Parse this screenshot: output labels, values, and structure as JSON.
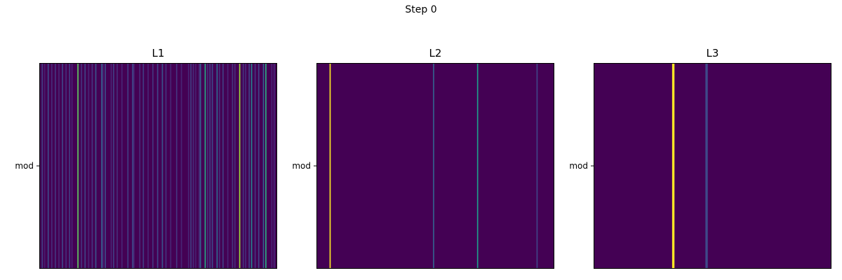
{
  "figure": {
    "suptitle": "Step 0"
  },
  "chart_data": [
    {
      "type": "heatmap",
      "title": "L1",
      "ytick_labels": [
        "mod"
      ],
      "colormap": "viridis",
      "background_color": "#440154",
      "xaxis_ticks": false,
      "n_columns": 200,
      "stripes": [
        {
          "col": 2,
          "value": 0.18
        },
        {
          "col": 4,
          "value": 0.08
        },
        {
          "col": 7,
          "value": 0.22
        },
        {
          "col": 10,
          "value": 0.12
        },
        {
          "col": 13,
          "value": 0.15
        },
        {
          "col": 16,
          "value": 0.1
        },
        {
          "col": 19,
          "value": 0.2
        },
        {
          "col": 22,
          "value": 0.12
        },
        {
          "col": 25,
          "value": 0.18
        },
        {
          "col": 27,
          "value": 0.1
        },
        {
          "col": 32,
          "value": 0.75
        },
        {
          "col": 35,
          "value": 0.14
        },
        {
          "col": 38,
          "value": 0.2
        },
        {
          "col": 41,
          "value": 0.1
        },
        {
          "col": 44,
          "value": 0.15
        },
        {
          "col": 47,
          "value": 0.25
        },
        {
          "col": 52,
          "value": 0.3
        },
        {
          "col": 53,
          "value": 0.12
        },
        {
          "col": 55,
          "value": 0.22
        },
        {
          "col": 60,
          "value": 0.1
        },
        {
          "col": 62,
          "value": 0.18
        },
        {
          "col": 65,
          "value": 0.12
        },
        {
          "col": 69,
          "value": 0.1
        },
        {
          "col": 74,
          "value": 0.18
        },
        {
          "col": 78,
          "value": 0.22
        },
        {
          "col": 79,
          "value": 0.12
        },
        {
          "col": 84,
          "value": 0.12
        },
        {
          "col": 87,
          "value": 0.18
        },
        {
          "col": 91,
          "value": 0.1
        },
        {
          "col": 95,
          "value": 0.15
        },
        {
          "col": 99,
          "value": 0.2
        },
        {
          "col": 103,
          "value": 0.25
        },
        {
          "col": 106,
          "value": 0.14
        },
        {
          "col": 110,
          "value": 0.1
        },
        {
          "col": 115,
          "value": 0.15
        },
        {
          "col": 119,
          "value": 0.1
        },
        {
          "col": 125,
          "value": 0.1
        },
        {
          "col": 127,
          "value": 0.18
        },
        {
          "col": 129,
          "value": 0.12
        },
        {
          "col": 131,
          "value": 0.08
        },
        {
          "col": 134,
          "value": 0.12
        },
        {
          "col": 135,
          "value": 0.3
        },
        {
          "col": 139,
          "value": 0.6
        },
        {
          "col": 141,
          "value": 0.12
        },
        {
          "col": 143,
          "value": 0.18
        },
        {
          "col": 145,
          "value": 0.22
        },
        {
          "col": 149,
          "value": 0.35
        },
        {
          "col": 151,
          "value": 0.12
        },
        {
          "col": 154,
          "value": 0.18
        },
        {
          "col": 158,
          "value": 0.1
        },
        {
          "col": 162,
          "value": 0.15
        },
        {
          "col": 164,
          "value": 0.12
        },
        {
          "col": 168,
          "value": 0.85
        },
        {
          "col": 171,
          "value": 0.15
        },
        {
          "col": 173,
          "value": 0.12
        },
        {
          "col": 176,
          "value": 0.2
        },
        {
          "col": 178,
          "value": 0.45
        },
        {
          "col": 181,
          "value": 0.15
        },
        {
          "col": 184,
          "value": 0.2
        },
        {
          "col": 188,
          "value": 0.3
        },
        {
          "col": 190,
          "value": 0.62
        },
        {
          "col": 195,
          "value": 0.1
        },
        {
          "col": 197,
          "value": 0.12
        }
      ]
    },
    {
      "type": "heatmap",
      "title": "L2",
      "ytick_labels": [
        "mod"
      ],
      "colormap": "viridis",
      "background_color": "#440154",
      "xaxis_ticks": false,
      "n_columns": 200,
      "stripes": [
        {
          "col": 11,
          "value": 1.0
        },
        {
          "col": 98,
          "value": 0.3
        },
        {
          "col": 135,
          "value": 0.55
        },
        {
          "col": 185,
          "value": 0.2
        }
      ]
    },
    {
      "type": "heatmap",
      "title": "L3",
      "ytick_labels": [
        "mod"
      ],
      "colormap": "viridis",
      "background_color": "#440154",
      "xaxis_ticks": false,
      "n_columns": 100,
      "stripes": [
        {
          "col": 33,
          "value": 1.0
        },
        {
          "col": 47,
          "value": 0.22
        }
      ]
    }
  ]
}
